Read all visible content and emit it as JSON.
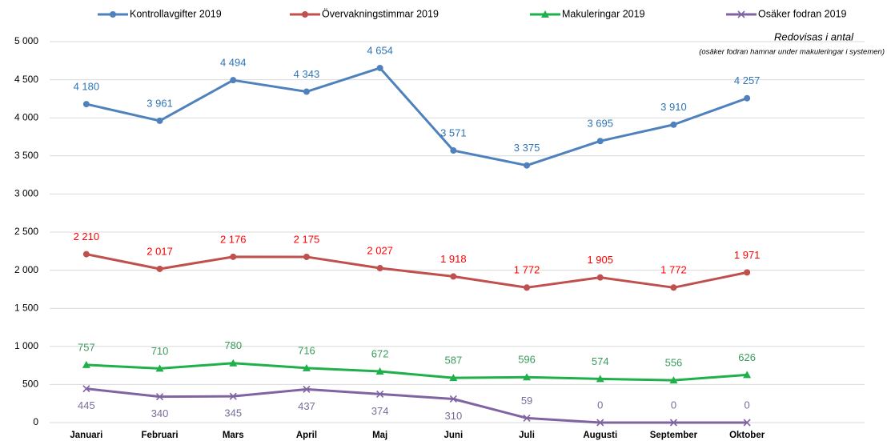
{
  "chart_data": {
    "type": "line",
    "annotations": [
      "Redovisas i antal",
      "(osäker fodran hamnar under makuleringar i systemen)"
    ],
    "categories": [
      "Januari",
      "Februari",
      "Mars",
      "April",
      "Maj",
      "Juni",
      "Juli",
      "Augusti",
      "September",
      "Oktober"
    ],
    "series": [
      {
        "name": "Kontrollavgifter 2019",
        "color": "#4f81bd",
        "label_color": "#2e75b6",
        "marker": "circle",
        "values": [
          4180,
          3961,
          4494,
          4343,
          4654,
          3571,
          3375,
          3695,
          3910,
          4257
        ],
        "value_labels": [
          "4 180",
          "3 961",
          "4 494",
          "4 343",
          "4 654",
          "3 571",
          "3 375",
          "3 695",
          "3 910",
          "4 257"
        ]
      },
      {
        "name": "Övervakningstimmar 2019",
        "color": "#c0504d",
        "label_color": "#ff0000",
        "marker": "circle",
        "values": [
          2210,
          2017,
          2176,
          2175,
          2027,
          1918,
          1772,
          1905,
          1772,
          1971
        ],
        "value_labels": [
          "2 210",
          "2 017",
          "2 176",
          "2 175",
          "2 027",
          "1 918",
          "1 772",
          "1 905",
          "1 772",
          "1 971"
        ]
      },
      {
        "name": "Makuleringar 2019",
        "color": "#1fb04b",
        "label_color": "#3a9a5c",
        "marker": "triangle",
        "values": [
          757,
          710,
          780,
          716,
          672,
          587,
          596,
          574,
          556,
          626
        ]
      },
      {
        "name": "Osäker fodran 2019",
        "color": "#8064a2",
        "label_color": "#7a6d99",
        "marker": "x",
        "values": [
          445,
          340,
          345,
          437,
          374,
          310,
          59,
          0,
          0,
          0
        ]
      }
    ],
    "ylim": [
      0,
      5000
    ],
    "yticks": [
      0,
      500,
      {
        "value": 1000,
        "label": "1 000"
      },
      {
        "value": 1500,
        "label": "1 500"
      },
      {
        "value": 2000,
        "label": "2 000"
      },
      {
        "value": 2500,
        "label": "2 500"
      },
      {
        "value": 3000,
        "label": "3 000"
      },
      {
        "value": 3500,
        "label": "3 500"
      },
      {
        "value": 4000,
        "label": "4 000"
      },
      {
        "value": 4500,
        "label": "4 500"
      },
      {
        "value": 5000,
        "label": "5 000"
      }
    ],
    "grid": true,
    "legend": "top"
  }
}
